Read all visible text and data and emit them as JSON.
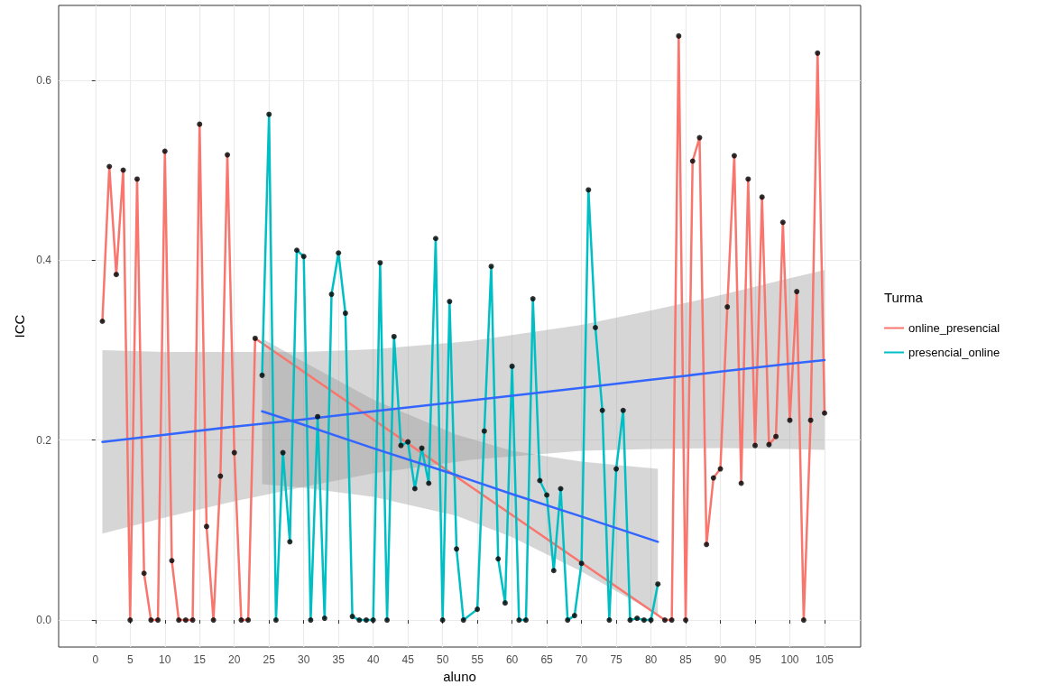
{
  "chart_data": {
    "type": "line",
    "xlabel": "aluno",
    "ylabel": "ICC",
    "legend_title": "Turma",
    "legend": "right",
    "grid": true,
    "xlim": [
      -5.3,
      110.2
    ],
    "ylim": [
      -0.03,
      0.683
    ],
    "xticks": [
      0,
      5,
      10,
      15,
      20,
      25,
      30,
      35,
      40,
      45,
      50,
      55,
      60,
      65,
      70,
      75,
      80,
      85,
      90,
      95,
      100,
      105
    ],
    "yticks": [
      {
        "value": 0,
        "label": "0.0"
      },
      {
        "value": 0.2,
        "label": "0.2"
      },
      {
        "value": 0.4,
        "label": "0.4"
      },
      {
        "value": 0.6,
        "label": "0.6"
      }
    ],
    "series": [
      {
        "name": "online_presencial",
        "color": "#f8766d",
        "marker": "none",
        "x": [
          1,
          2,
          3,
          4,
          5,
          6,
          7,
          8,
          9,
          10,
          11,
          12,
          13,
          14,
          15,
          16,
          17,
          18,
          19,
          20,
          21,
          22,
          23,
          82,
          83,
          84,
          85,
          86,
          87,
          88,
          89,
          90,
          91,
          92,
          93,
          94,
          95,
          96,
          97,
          98,
          99,
          100,
          101,
          102,
          103,
          104,
          105
        ],
        "values": [
          0.332,
          0.504,
          0.384,
          0.5,
          0,
          0.49,
          0.052,
          0,
          0,
          0.521,
          0.066,
          0,
          0,
          0,
          0.551,
          0.104,
          0,
          0.16,
          0.517,
          0.186,
          0,
          0,
          0.313,
          0,
          0,
          0.649,
          0,
          0.51,
          0.536,
          0.084,
          0.158,
          0.168,
          0.348,
          0.516,
          0.152,
          0.49,
          0.194,
          0.47,
          0.195,
          0.204,
          0.442,
          0.222,
          0.365,
          0,
          0.222,
          0.63,
          0.23
        ]
      },
      {
        "name": "presencial_online",
        "color": "#00bfc4",
        "marker": "none",
        "x": [
          24,
          25,
          26,
          27,
          28,
          29,
          30,
          31,
          32,
          33,
          34,
          35,
          36,
          37,
          38,
          39,
          40,
          41,
          42,
          43,
          44,
          45,
          46,
          47,
          48,
          49,
          50,
          51,
          52,
          53,
          55,
          56,
          57,
          58,
          59,
          60,
          61,
          62,
          63,
          64,
          65,
          66,
          67,
          68,
          69,
          70,
          71,
          72,
          73,
          74,
          75,
          76,
          77,
          78,
          79,
          80,
          81
        ],
        "values": [
          0.272,
          0.562,
          0,
          0.186,
          0.087,
          0.411,
          0.404,
          0,
          0.226,
          0.002,
          0.362,
          0.408,
          0.341,
          0.004,
          0,
          0,
          0,
          0.397,
          0,
          0.315,
          0.194,
          0.198,
          0.146,
          0.191,
          0.152,
          0.424,
          0,
          0.354,
          0.079,
          0,
          0.012,
          0.21,
          0.393,
          0.068,
          0.019,
          0.282,
          0,
          0,
          0.357,
          0.155,
          0.139,
          0.055,
          0.146,
          0,
          0.005,
          0.063,
          0.478,
          0.325,
          0.233,
          0,
          0.168,
          0.233,
          0,
          0.002,
          0,
          0,
          0.04
        ]
      },
      {
        "type": "scatter",
        "color": "#000000",
        "marker": "circle",
        "x": [
          1,
          2,
          3,
          4,
          5,
          6,
          7,
          8,
          9,
          10,
          11,
          12,
          13,
          14,
          15,
          16,
          17,
          18,
          19,
          20,
          21,
          22,
          23,
          82,
          83,
          84,
          85,
          86,
          87,
          88,
          89,
          90,
          91,
          92,
          93,
          94,
          95,
          96,
          97,
          98,
          99,
          100,
          101,
          102,
          103,
          104,
          105
        ],
        "values": [
          0.332,
          0.504,
          0.384,
          0.5,
          0,
          0.49,
          0.052,
          0,
          0,
          0.521,
          0.066,
          0,
          0,
          0,
          0.551,
          0.104,
          0,
          0.16,
          0.517,
          0.186,
          0,
          0,
          0.313,
          0,
          0,
          0.649,
          0,
          0.51,
          0.536,
          0.084,
          0.158,
          0.168,
          0.348,
          0.516,
          0.152,
          0.49,
          0.194,
          0.47,
          0.195,
          0.204,
          0.442,
          0.222,
          0.365,
          0,
          0.222,
          0.63,
          0.23
        ]
      },
      {
        "type": "scatter",
        "color": "#000000",
        "marker": "circle",
        "x": [
          24,
          25,
          26,
          27,
          28,
          29,
          30,
          31,
          32,
          33,
          34,
          35,
          36,
          37,
          38,
          39,
          40,
          41,
          42,
          43,
          44,
          45,
          46,
          47,
          48,
          49,
          50,
          51,
          52,
          53,
          55,
          56,
          57,
          58,
          59,
          60,
          61,
          62,
          63,
          64,
          65,
          66,
          67,
          68,
          69,
          70,
          71,
          72,
          73,
          74,
          75,
          76,
          77,
          78,
          79,
          80,
          81
        ],
        "values": [
          0.272,
          0.562,
          0,
          0.186,
          0.087,
          0.411,
          0.404,
          0,
          0.226,
          0.002,
          0.362,
          0.408,
          0.341,
          0.004,
          0,
          0,
          0,
          0.397,
          0,
          0.315,
          0.194,
          0.198,
          0.146,
          0.191,
          0.152,
          0.424,
          0,
          0.354,
          0.079,
          0,
          0.012,
          0.21,
          0.393,
          0.068,
          0.019,
          0.282,
          0,
          0,
          0.357,
          0.155,
          0.139,
          0.055,
          0.146,
          0,
          0.005,
          0.063,
          0.478,
          0.325,
          0.233,
          0,
          0.168,
          0.233,
          0,
          0.002,
          0,
          0,
          0.04
        ]
      },
      {
        "color": "#3366ff",
        "marker": "none",
        "x": [
          1,
          10,
          20,
          30,
          40,
          54,
          70,
          80,
          90,
          100,
          105
        ],
        "values": [
          0.198,
          0.206,
          0.215,
          0.223,
          0.232,
          0.244,
          0.258,
          0.267,
          0.276,
          0.285,
          0.289
        ],
        "lower": [
          0.096,
          0.114,
          0.132,
          0.148,
          0.163,
          0.178,
          0.188,
          0.19,
          0.191,
          0.19,
          0.189
        ],
        "upper": [
          0.3,
          0.298,
          0.298,
          0.298,
          0.301,
          0.31,
          0.328,
          0.344,
          0.361,
          0.38,
          0.389
        ]
      },
      {
        "color": "#3366ff",
        "marker": "none",
        "x": [
          24,
          30,
          40,
          52,
          60,
          70,
          81
        ],
        "values": [
          0.232,
          0.217,
          0.191,
          0.161,
          0.14,
          0.115,
          0.087
        ],
        "lower": [
          0.151,
          0.147,
          0.137,
          0.116,
          0.092,
          0.054,
          0.006
        ],
        "upper": [
          0.313,
          0.287,
          0.245,
          0.206,
          0.188,
          0.176,
          0.168
        ]
      }
    ]
  }
}
